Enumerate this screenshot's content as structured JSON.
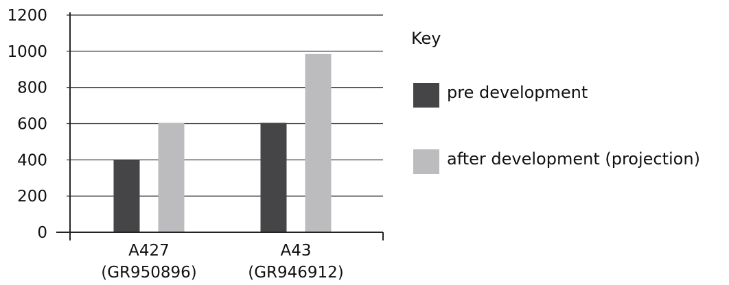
{
  "chart_data": {
    "type": "bar",
    "categories": [
      [
        "A427",
        "(GR950896)"
      ],
      [
        "A43",
        "(GR946912)"
      ]
    ],
    "series": [
      {
        "name": "pre development",
        "values": [
          400,
          605
        ],
        "color": "#454547"
      },
      {
        "name": "after development (projection)",
        "values": [
          605,
          985
        ],
        "color": "#bcbcbe"
      }
    ],
    "ylim": [
      0,
      1200
    ],
    "yticks": [
      0,
      200,
      400,
      600,
      800,
      1000,
      1200
    ],
    "grid": true,
    "legend_title": "Key",
    "legend_position": "right"
  }
}
